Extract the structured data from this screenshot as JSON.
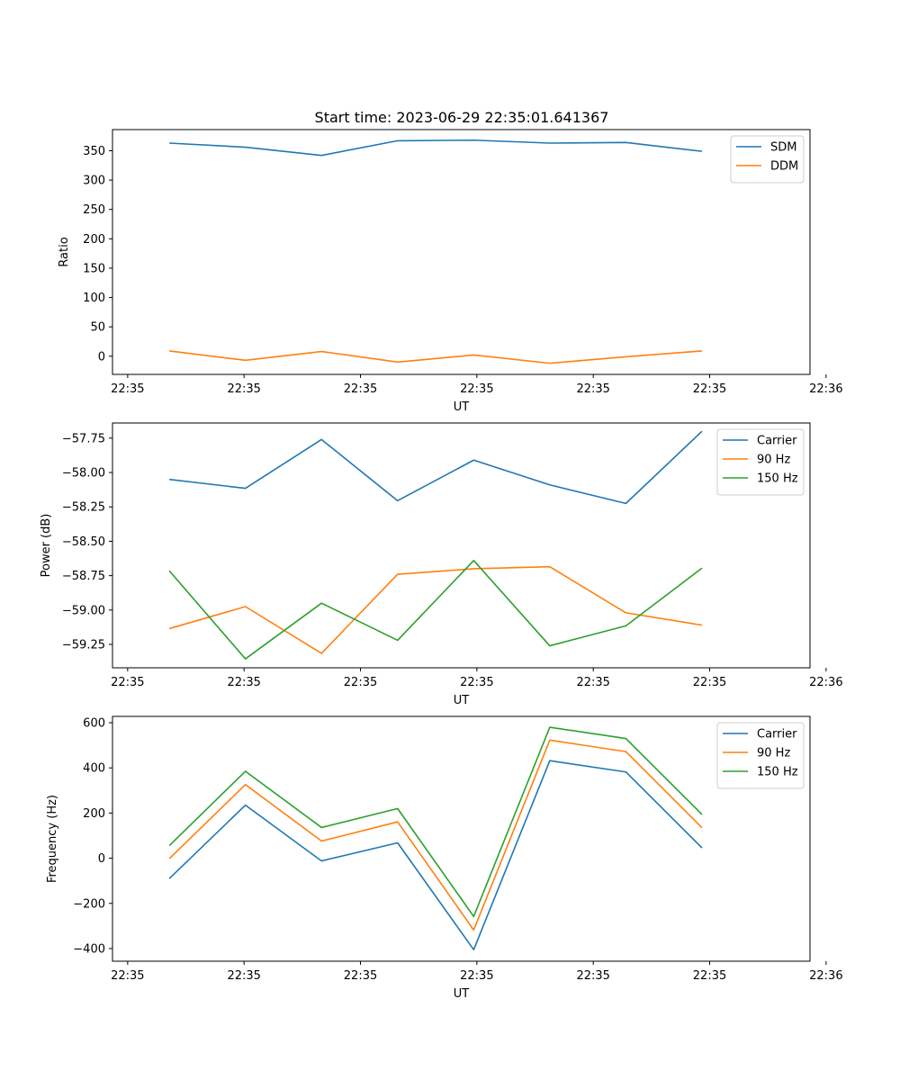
{
  "figure": {
    "title": "Start time: 2023-06-29 22:35:01.641367"
  },
  "colors": {
    "blue": "#1f77b4",
    "orange": "#ff7f0e",
    "green": "#2ca02c"
  },
  "chart_data": [
    {
      "type": "line",
      "title": "Start time: 2023-06-29 22:35:01.641367",
      "xlabel": "UT",
      "ylabel": "Ratio",
      "x": [
        "22:35:01.641",
        "22:35:01.977",
        "22:35:02.313",
        "22:35:02.649",
        "22:35:02.985",
        "22:35:03.321",
        "22:35:03.657",
        "22:35:03.993"
      ],
      "xlim": [
        "22:35:01.390",
        "22:35:04.470"
      ],
      "xticks": [
        {
          "pos": "22:35:01.457",
          "label": "22:35"
        },
        {
          "pos": "22:35:01.971",
          "label": "22:35"
        },
        {
          "pos": "22:35:02.485",
          "label": "22:35"
        },
        {
          "pos": "22:35:02.999",
          "label": "22:35"
        },
        {
          "pos": "22:35:03.513",
          "label": "22:35"
        },
        {
          "pos": "22:35:04.027",
          "label": "22:35"
        },
        {
          "pos": "22:35:04.541",
          "label": "22:36"
        }
      ],
      "ylim": [
        -31,
        386
      ],
      "yticks": [
        0,
        50,
        100,
        150,
        200,
        250,
        300,
        350
      ],
      "ytick_labels": [
        "0",
        "50",
        "100",
        "150",
        "200",
        "250",
        "300",
        "350"
      ],
      "legend_position": "upper right",
      "series": [
        {
          "name": "SDM",
          "color": "#1f77b4",
          "values": [
            363,
            356,
            342,
            367,
            368,
            363,
            364,
            349
          ]
        },
        {
          "name": "DDM",
          "color": "#ff7f0e",
          "values": [
            9,
            -7,
            8,
            -10,
            2,
            -12,
            -1,
            9
          ]
        }
      ]
    },
    {
      "type": "line",
      "xlabel": "UT",
      "ylabel": "Power (dB)",
      "x": [
        "22:35:01.641",
        "22:35:01.977",
        "22:35:02.313",
        "22:35:02.649",
        "22:35:02.985",
        "22:35:03.321",
        "22:35:03.657",
        "22:35:03.993"
      ],
      "xlim": [
        "22:35:01.390",
        "22:35:04.470"
      ],
      "xticks": [
        {
          "pos": "22:35:01.457",
          "label": "22:35"
        },
        {
          "pos": "22:35:01.971",
          "label": "22:35"
        },
        {
          "pos": "22:35:02.485",
          "label": "22:35"
        },
        {
          "pos": "22:35:02.999",
          "label": "22:35"
        },
        {
          "pos": "22:35:03.513",
          "label": "22:35"
        },
        {
          "pos": "22:35:04.027",
          "label": "22:35"
        },
        {
          "pos": "22:35:04.541",
          "label": "22:36"
        }
      ],
      "ylim": [
        -59.42,
        -57.64
      ],
      "yticks": [
        -59.25,
        -59.0,
        -58.75,
        -58.5,
        -58.25,
        -58.0,
        -57.75
      ],
      "ytick_labels": [
        "−59.25",
        "−59.00",
        "−58.75",
        "−58.50",
        "−58.25",
        "−58.00",
        "−57.75"
      ],
      "legend_position": "upper right",
      "series": [
        {
          "name": "Carrier",
          "color": "#1f77b4",
          "values": [
            -58.05,
            -58.115,
            -57.76,
            -58.205,
            -57.91,
            -58.09,
            -58.225,
            -57.7
          ]
        },
        {
          "name": "90 Hz",
          "color": "#ff7f0e",
          "values": [
            -59.135,
            -58.975,
            -59.315,
            -58.74,
            -58.7,
            -58.685,
            -59.02,
            -59.11
          ]
        },
        {
          "name": "150 Hz",
          "color": "#2ca02c",
          "values": [
            -58.715,
            -59.355,
            -58.95,
            -59.22,
            -58.64,
            -59.26,
            -59.115,
            -58.695
          ]
        }
      ]
    },
    {
      "type": "line",
      "xlabel": "UT",
      "ylabel": "Frequency (Hz)",
      "x": [
        "22:35:01.641",
        "22:35:01.977",
        "22:35:02.313",
        "22:35:02.649",
        "22:35:02.985",
        "22:35:03.321",
        "22:35:03.657",
        "22:35:03.993"
      ],
      "xlim": [
        "22:35:01.390",
        "22:35:04.470"
      ],
      "xticks": [
        {
          "pos": "22:35:01.457",
          "label": "22:35"
        },
        {
          "pos": "22:35:01.971",
          "label": "22:35"
        },
        {
          "pos": "22:35:02.485",
          "label": "22:35"
        },
        {
          "pos": "22:35:02.999",
          "label": "22:35"
        },
        {
          "pos": "22:35:03.513",
          "label": "22:35"
        },
        {
          "pos": "22:35:04.027",
          "label": "22:35"
        },
        {
          "pos": "22:35:04.541",
          "label": "22:36"
        }
      ],
      "ylim": [
        -456,
        628
      ],
      "yticks": [
        -400,
        -200,
        0,
        200,
        400,
        600
      ],
      "ytick_labels": [
        "−400",
        "−200",
        "0",
        "200",
        "400",
        "600"
      ],
      "legend_position": "upper right",
      "series": [
        {
          "name": "Carrier",
          "color": "#1f77b4",
          "values": [
            -90,
            235,
            -12,
            68,
            -405,
            432,
            382,
            46
          ]
        },
        {
          "name": "90 Hz",
          "color": "#ff7f0e",
          "values": [
            -2,
            326,
            76,
            161,
            -318,
            523,
            472,
            135
          ]
        },
        {
          "name": "150 Hz",
          "color": "#2ca02c",
          "values": [
            56,
            385,
            136,
            220,
            -258,
            580,
            530,
            194
          ]
        }
      ]
    }
  ]
}
